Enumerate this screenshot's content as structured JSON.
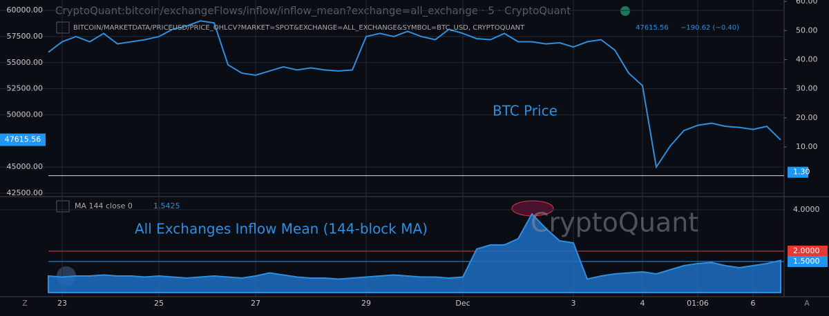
{
  "header": {
    "title": "CryptoQuant:bitcoin/exchangeFlows/inflow/inflow_mean?exchange=all_exchange · 5 · CryptoQuant",
    "change": "−190.62 (−0.40)"
  },
  "footer": {
    "left": "Z",
    "right": "A"
  },
  "chart_data": [
    {
      "type": "line",
      "annotation": "BTC Price",
      "series": [
        {
          "name": "BITCOIN/MARKETDATA/PRICEUSD/PRICE_OHLCV?MARKET=SPOT&EXCHANGE=ALL_EXCHANGE&SYMBOL=BTC_USD, CRYPTOQUANT",
          "color": "#2e8fe0",
          "values": [
            56000,
            57000,
            57500,
            57000,
            57800,
            56800,
            57000,
            57200,
            57500,
            58200,
            58500,
            59000,
            58800,
            54800,
            54000,
            53800,
            54200,
            54600,
            54300,
            54500,
            54300,
            54200,
            54300,
            57500,
            57800,
            57500,
            58000,
            57500,
            57200,
            58200,
            57800,
            57300,
            57200,
            57800,
            57000,
            57000,
            56800,
            56900,
            56500,
            57000,
            57200,
            56200,
            54000,
            52800,
            45000,
            47000,
            48500,
            49000,
            49200,
            48900,
            48800,
            48600,
            48900,
            47600
          ]
        }
      ],
      "last_value": 47615.56,
      "ylim": [
        42300,
        61000
      ],
      "yticks": [
        {
          "value": 42500,
          "label": "42500.00"
        },
        {
          "value": 45000,
          "label": "45000.00"
        },
        {
          "value": 50000,
          "label": "50000.00"
        },
        {
          "value": 52500,
          "label": "52500.00"
        },
        {
          "value": 55000,
          "label": "55000.00"
        },
        {
          "value": 57500,
          "label": "57500.00"
        },
        {
          "value": 60000,
          "label": "60000.00"
        }
      ],
      "y2lim": [
        -6.6,
        60.5
      ],
      "y2ticks": [
        {
          "value": 10,
          "label": "10.00"
        },
        {
          "value": 20,
          "label": "20.00"
        },
        {
          "value": 30,
          "label": "30.00"
        },
        {
          "value": 40,
          "label": "40.00"
        },
        {
          "value": 50,
          "label": "50.00"
        },
        {
          "value": 60,
          "label": "60.00"
        }
      ],
      "y2_marker": {
        "value": 1.3,
        "label": "1.30"
      },
      "grid": true
    },
    {
      "type": "area",
      "annotation": "All Exchanges Inflow Mean (144-block MA)",
      "watermark": "CryptoQuant",
      "x": [
        null,
        "23",
        null,
        null,
        null,
        null,
        null,
        null,
        "25",
        null,
        null,
        null,
        null,
        null,
        null,
        "27",
        null,
        null,
        null,
        null,
        null,
        null,
        null,
        "29",
        null,
        null,
        null,
        null,
        null,
        null,
        "Dec",
        null,
        null,
        null,
        null,
        null,
        null,
        null,
        "3",
        null,
        null,
        null,
        null,
        "4",
        null,
        null,
        null,
        "01:06",
        null,
        null,
        null,
        "6",
        null,
        null
      ],
      "series": [
        {
          "name": "MA 144 close 0",
          "color": "#2e8fe0",
          "values": [
            0.8,
            0.75,
            0.8,
            0.8,
            0.85,
            0.8,
            0.8,
            0.75,
            0.8,
            0.75,
            0.7,
            0.75,
            0.8,
            0.75,
            0.7,
            0.8,
            0.95,
            0.85,
            0.75,
            0.7,
            0.7,
            0.65,
            0.7,
            0.75,
            0.8,
            0.85,
            0.8,
            0.75,
            0.75,
            0.7,
            0.75,
            2.1,
            2.3,
            2.3,
            2.6,
            3.8,
            3.1,
            2.5,
            2.4,
            0.65,
            0.8,
            0.9,
            0.95,
            1.0,
            0.9,
            1.1,
            1.3,
            1.4,
            1.45,
            1.3,
            1.2,
            1.3,
            1.4,
            1.55
          ]
        }
      ],
      "last_value": 1.5425,
      "ylim": [
        0,
        4.5
      ],
      "yticks": [
        {
          "value": 4,
          "label": "4.0000"
        }
      ],
      "markers": [
        {
          "value": 2,
          "label": "2.0000",
          "color": "#e53935"
        },
        {
          "value": 1.5,
          "label": "1.5000",
          "color": "#2196f3"
        }
      ],
      "grid": true
    }
  ]
}
